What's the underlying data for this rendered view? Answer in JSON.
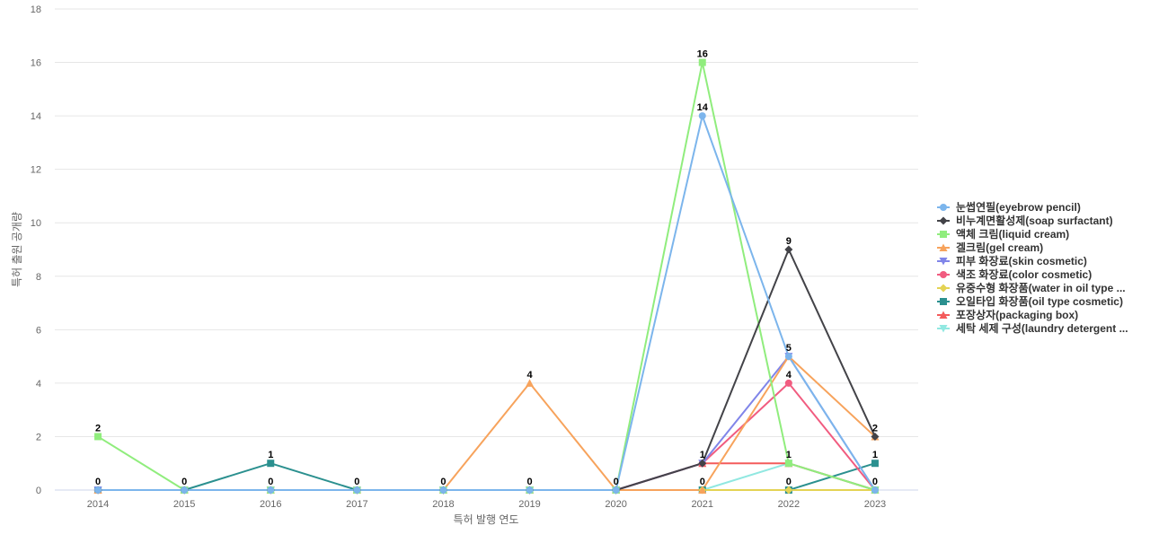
{
  "chart_data": {
    "type": "line",
    "title": "",
    "xlabel": "특허 발행 연도",
    "ylabel": "특허 출원 공개량",
    "categories": [
      "2014",
      "2015",
      "2016",
      "2017",
      "2018",
      "2019",
      "2020",
      "2021",
      "2022",
      "2023"
    ],
    "ylim": [
      0,
      18
    ],
    "yticks": [
      0,
      2,
      4,
      6,
      8,
      10,
      12,
      14,
      16,
      18
    ],
    "grid": true,
    "legend_position": "right",
    "series": [
      {
        "name": "눈썹연필(eyebrow pencil)",
        "color": "#7cb5ec",
        "marker": "circle",
        "values": [
          0,
          0,
          0,
          0,
          0,
          0,
          0,
          14,
          5,
          0
        ]
      },
      {
        "name": "비누계면활성제(soap surfactant)",
        "color": "#434348",
        "marker": "diamond",
        "values": [
          0,
          0,
          0,
          0,
          0,
          0,
          0,
          1,
          9,
          2
        ]
      },
      {
        "name": "액체 크림(liquid cream)",
        "color": "#90ed7d",
        "marker": "square",
        "values": [
          2,
          0,
          0,
          0,
          0,
          0,
          0,
          16,
          1,
          0
        ]
      },
      {
        "name": "겔크림(gel cream)",
        "color": "#f7a35c",
        "marker": "triangle",
        "values": [
          0,
          0,
          0,
          0,
          0,
          4,
          0,
          0,
          5,
          2
        ]
      },
      {
        "name": "피부 화장료(skin cosmetic)",
        "color": "#8085e9",
        "marker": "triangle-down",
        "values": [
          0,
          0,
          0,
          0,
          0,
          0,
          0,
          1,
          5,
          0
        ]
      },
      {
        "name": "색조 화장료(color cosmetic)",
        "color": "#f15c80",
        "marker": "circle",
        "values": [
          0,
          0,
          0,
          0,
          0,
          0,
          0,
          1,
          4,
          0
        ]
      },
      {
        "name": "유중수형 화장품(water in oil type ...",
        "color": "#e4d354",
        "marker": "diamond",
        "values": [
          0,
          0,
          0,
          0,
          0,
          0,
          0,
          0,
          0,
          0
        ]
      },
      {
        "name": "오일타입 화장품(oil type cosmetic)",
        "color": "#2b908f",
        "marker": "square",
        "values": [
          0,
          0,
          1,
          0,
          0,
          0,
          0,
          0,
          0,
          1
        ]
      },
      {
        "name": "포장상자(packaging box)",
        "color": "#f45b5b",
        "marker": "triangle",
        "values": [
          0,
          0,
          0,
          0,
          0,
          0,
          0,
          1,
          1,
          0
        ]
      },
      {
        "name": "세탁 세제 구성(laundry detergent ...",
        "color": "#91e8e1",
        "marker": "triangle-down",
        "values": [
          0,
          0,
          0,
          0,
          0,
          0,
          0,
          0,
          1,
          0
        ]
      }
    ],
    "data_labels": [
      {
        "x": "2014",
        "value": 2
      },
      {
        "x": "2014",
        "value": 0
      },
      {
        "x": "2015",
        "value": 0
      },
      {
        "x": "2016",
        "value": 1
      },
      {
        "x": "2016",
        "value": 0
      },
      {
        "x": "2017",
        "value": 0
      },
      {
        "x": "2018",
        "value": 0
      },
      {
        "x": "2019",
        "value": 4
      },
      {
        "x": "2019",
        "value": 0
      },
      {
        "x": "2020",
        "value": 0
      },
      {
        "x": "2021",
        "value": 16
      },
      {
        "x": "2021",
        "value": 14
      },
      {
        "x": "2021",
        "value": 1
      },
      {
        "x": "2021",
        "value": 0
      },
      {
        "x": "2022",
        "value": 9
      },
      {
        "x": "2022",
        "value": 5
      },
      {
        "x": "2022",
        "value": 4
      },
      {
        "x": "2022",
        "value": 1
      },
      {
        "x": "2022",
        "value": 0
      },
      {
        "x": "2023",
        "value": 2
      },
      {
        "x": "2023",
        "value": 1
      },
      {
        "x": "2023",
        "value": 0
      }
    ]
  }
}
